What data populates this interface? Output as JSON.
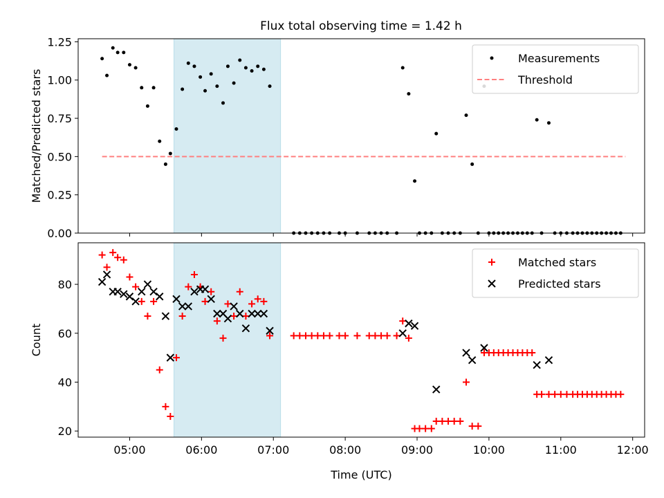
{
  "title": "Flux total observing time = 1.42 h",
  "chart_data": [
    {
      "type": "scatter",
      "ylabel": "Matched/Predicted stars",
      "xlim": [
        "04:17",
        "12:10"
      ],
      "ylim": [
        0,
        1.27
      ],
      "yticks": [
        "0.00",
        "0.25",
        "0.50",
        "0.75",
        "1.00",
        "1.25"
      ],
      "x_ticks_labeled": false,
      "shaded_region": {
        "x_start": "05:37",
        "x_end": "07:06",
        "color": "#add8e6"
      },
      "legend": {
        "placement": "top-right",
        "entries": [
          "Measurements",
          "Threshold"
        ]
      },
      "threshold": {
        "name": "Threshold",
        "y": 0.5,
        "x_start": "04:37",
        "x_end": "11:54",
        "color": "#ff8080",
        "style": "dashed"
      },
      "series": [
        {
          "name": "Measurements",
          "marker": "dot",
          "color": "#000000",
          "points": [
            [
              "04:37",
              1.14
            ],
            [
              "04:41",
              1.03
            ],
            [
              "04:46",
              1.21
            ],
            [
              "04:50",
              1.18
            ],
            [
              "04:55",
              1.18
            ],
            [
              "05:00",
              1.1
            ],
            [
              "05:05",
              1.08
            ],
            [
              "05:10",
              0.95
            ],
            [
              "05:15",
              0.83
            ],
            [
              "05:20",
              0.95
            ],
            [
              "05:25",
              0.6
            ],
            [
              "05:30",
              0.45
            ],
            [
              "05:34",
              0.52
            ],
            [
              "05:39",
              0.68
            ],
            [
              "05:44",
              0.94
            ],
            [
              "05:49",
              1.11
            ],
            [
              "05:54",
              1.09
            ],
            [
              "05:59",
              1.02
            ],
            [
              "06:03",
              0.93
            ],
            [
              "06:08",
              1.04
            ],
            [
              "06:13",
              0.96
            ],
            [
              "06:18",
              0.85
            ],
            [
              "06:22",
              1.09
            ],
            [
              "06:27",
              0.98
            ],
            [
              "06:32",
              1.13
            ],
            [
              "06:37",
              1.08
            ],
            [
              "06:42",
              1.06
            ],
            [
              "06:47",
              1.09
            ],
            [
              "06:52",
              1.07
            ],
            [
              "06:57",
              0.96
            ],
            [
              "07:17",
              0.0
            ],
            [
              "07:22",
              0.0
            ],
            [
              "07:27",
              0.0
            ],
            [
              "07:32",
              0.0
            ],
            [
              "07:37",
              0.0
            ],
            [
              "07:42",
              0.0
            ],
            [
              "07:47",
              0.0
            ],
            [
              "07:55",
              0.0
            ],
            [
              "08:00",
              0.0
            ],
            [
              "08:10",
              0.0
            ],
            [
              "08:20",
              0.0
            ],
            [
              "08:25",
              0.0
            ],
            [
              "08:30",
              0.0
            ],
            [
              "08:35",
              0.0
            ],
            [
              "08:43",
              0.0
            ],
            [
              "08:48",
              1.08
            ],
            [
              "08:53",
              0.91
            ],
            [
              "08:58",
              0.34
            ],
            [
              "09:02",
              0.0
            ],
            [
              "09:07",
              0.0
            ],
            [
              "09:12",
              0.0
            ],
            [
              "09:16",
              0.65
            ],
            [
              "09:21",
              0.0
            ],
            [
              "09:26",
              0.0
            ],
            [
              "09:31",
              0.0
            ],
            [
              "09:36",
              0.0
            ],
            [
              "09:41",
              0.77
            ],
            [
              "09:46",
              0.45
            ],
            [
              "09:51",
              0.0
            ],
            [
              "09:56",
              0.96
            ],
            [
              "10:00",
              0.0
            ],
            [
              "10:04",
              0.0
            ],
            [
              "10:08",
              0.0
            ],
            [
              "10:12",
              0.0
            ],
            [
              "10:16",
              0.0
            ],
            [
              "10:20",
              0.0
            ],
            [
              "10:24",
              0.0
            ],
            [
              "10:28",
              0.0
            ],
            [
              "10:32",
              0.0
            ],
            [
              "10:36",
              0.0
            ],
            [
              "10:40",
              0.74
            ],
            [
              "10:44",
              0.0
            ],
            [
              "10:50",
              0.72
            ],
            [
              "10:55",
              0.0
            ],
            [
              "11:00",
              0.0
            ],
            [
              "11:05",
              0.0
            ],
            [
              "11:10",
              0.0
            ],
            [
              "11:14",
              0.0
            ],
            [
              "11:18",
              0.0
            ],
            [
              "11:22",
              0.0
            ],
            [
              "11:26",
              0.0
            ],
            [
              "11:30",
              0.0
            ],
            [
              "11:34",
              0.0
            ],
            [
              "11:38",
              0.0
            ],
            [
              "11:42",
              0.0
            ],
            [
              "11:46",
              0.0
            ],
            [
              "11:50",
              0.0
            ]
          ]
        }
      ]
    },
    {
      "type": "scatter",
      "ylabel": "Count",
      "xlabel": "Time (UTC)",
      "xlim": [
        "04:17",
        "12:10"
      ],
      "ylim": [
        17.5,
        97
      ],
      "yticks": [
        "20",
        "40",
        "60",
        "80"
      ],
      "xticks": [
        "05:00",
        "06:00",
        "07:00",
        "08:00",
        "09:00",
        "10:00",
        "11:00",
        "12:00"
      ],
      "shaded_region": {
        "x_start": "05:37",
        "x_end": "07:06",
        "color": "#add8e6"
      },
      "legend": {
        "placement": "top-right",
        "entries": [
          "Matched stars",
          "Predicted stars"
        ]
      },
      "series": [
        {
          "name": "Matched stars",
          "marker": "plus",
          "color": "#ff0000",
          "points": [
            [
              "04:37",
              92
            ],
            [
              "04:41",
              87
            ],
            [
              "04:46",
              93
            ],
            [
              "04:50",
              91
            ],
            [
              "04:55",
              90
            ],
            [
              "05:00",
              83
            ],
            [
              "05:05",
              79
            ],
            [
              "05:10",
              73
            ],
            [
              "05:15",
              67
            ],
            [
              "05:20",
              73
            ],
            [
              "05:25",
              45
            ],
            [
              "05:30",
              30
            ],
            [
              "05:34",
              26
            ],
            [
              "05:39",
              50
            ],
            [
              "05:44",
              67
            ],
            [
              "05:49",
              79
            ],
            [
              "05:54",
              84
            ],
            [
              "05:59",
              79
            ],
            [
              "06:03",
              73
            ],
            [
              "06:08",
              77
            ],
            [
              "06:13",
              65
            ],
            [
              "06:18",
              58
            ],
            [
              "06:22",
              72
            ],
            [
              "06:27",
              67
            ],
            [
              "06:32",
              77
            ],
            [
              "06:37",
              67
            ],
            [
              "06:42",
              72
            ],
            [
              "06:47",
              74
            ],
            [
              "06:52",
              73
            ],
            [
              "06:57",
              59
            ],
            [
              "07:17",
              59
            ],
            [
              "07:22",
              59
            ],
            [
              "07:27",
              59
            ],
            [
              "07:32",
              59
            ],
            [
              "07:37",
              59
            ],
            [
              "07:42",
              59
            ],
            [
              "07:47",
              59
            ],
            [
              "07:55",
              59
            ],
            [
              "08:00",
              59
            ],
            [
              "08:10",
              59
            ],
            [
              "08:20",
              59
            ],
            [
              "08:25",
              59
            ],
            [
              "08:30",
              59
            ],
            [
              "08:35",
              59
            ],
            [
              "08:43",
              59
            ],
            [
              "08:48",
              65
            ],
            [
              "08:53",
              58
            ],
            [
              "08:58",
              21
            ],
            [
              "09:02",
              21
            ],
            [
              "09:07",
              21
            ],
            [
              "09:12",
              21
            ],
            [
              "09:16",
              24
            ],
            [
              "09:21",
              24
            ],
            [
              "09:26",
              24
            ],
            [
              "09:31",
              24
            ],
            [
              "09:36",
              24
            ],
            [
              "09:41",
              40
            ],
            [
              "09:46",
              22
            ],
            [
              "09:51",
              22
            ],
            [
              "09:56",
              52
            ],
            [
              "10:00",
              52
            ],
            [
              "10:04",
              52
            ],
            [
              "10:08",
              52
            ],
            [
              "10:12",
              52
            ],
            [
              "10:16",
              52
            ],
            [
              "10:20",
              52
            ],
            [
              "10:24",
              52
            ],
            [
              "10:28",
              52
            ],
            [
              "10:32",
              52
            ],
            [
              "10:36",
              52
            ],
            [
              "10:40",
              35
            ],
            [
              "10:44",
              35
            ],
            [
              "10:50",
              35
            ],
            [
              "10:55",
              35
            ],
            [
              "11:00",
              35
            ],
            [
              "11:05",
              35
            ],
            [
              "11:10",
              35
            ],
            [
              "11:14",
              35
            ],
            [
              "11:18",
              35
            ],
            [
              "11:22",
              35
            ],
            [
              "11:26",
              35
            ],
            [
              "11:30",
              35
            ],
            [
              "11:34",
              35
            ],
            [
              "11:38",
              35
            ],
            [
              "11:42",
              35
            ],
            [
              "11:46",
              35
            ],
            [
              "11:50",
              35
            ]
          ]
        },
        {
          "name": "Predicted stars",
          "marker": "x",
          "color": "#000000",
          "points": [
            [
              "04:37",
              81
            ],
            [
              "04:41",
              84
            ],
            [
              "04:46",
              77
            ],
            [
              "04:50",
              77
            ],
            [
              "04:55",
              76
            ],
            [
              "05:00",
              75
            ],
            [
              "05:05",
              73
            ],
            [
              "05:10",
              77
            ],
            [
              "05:15",
              80
            ],
            [
              "05:20",
              77
            ],
            [
              "05:25",
              75
            ],
            [
              "05:30",
              67
            ],
            [
              "05:34",
              50
            ],
            [
              "05:39",
              74
            ],
            [
              "05:44",
              71
            ],
            [
              "05:49",
              71
            ],
            [
              "05:54",
              77
            ],
            [
              "05:59",
              78
            ],
            [
              "06:03",
              78
            ],
            [
              "06:08",
              74
            ],
            [
              "06:13",
              68
            ],
            [
              "06:18",
              68
            ],
            [
              "06:22",
              66
            ],
            [
              "06:27",
              71
            ],
            [
              "06:32",
              68
            ],
            [
              "06:37",
              62
            ],
            [
              "06:42",
              68
            ],
            [
              "06:47",
              68
            ],
            [
              "06:52",
              68
            ],
            [
              "06:57",
              61
            ],
            [
              "08:48",
              60
            ],
            [
              "08:53",
              64
            ],
            [
              "08:58",
              63
            ],
            [
              "09:16",
              37
            ],
            [
              "09:41",
              52
            ],
            [
              "09:46",
              49
            ],
            [
              "09:56",
              54
            ],
            [
              "10:40",
              47
            ],
            [
              "10:50",
              49
            ]
          ]
        }
      ]
    }
  ]
}
